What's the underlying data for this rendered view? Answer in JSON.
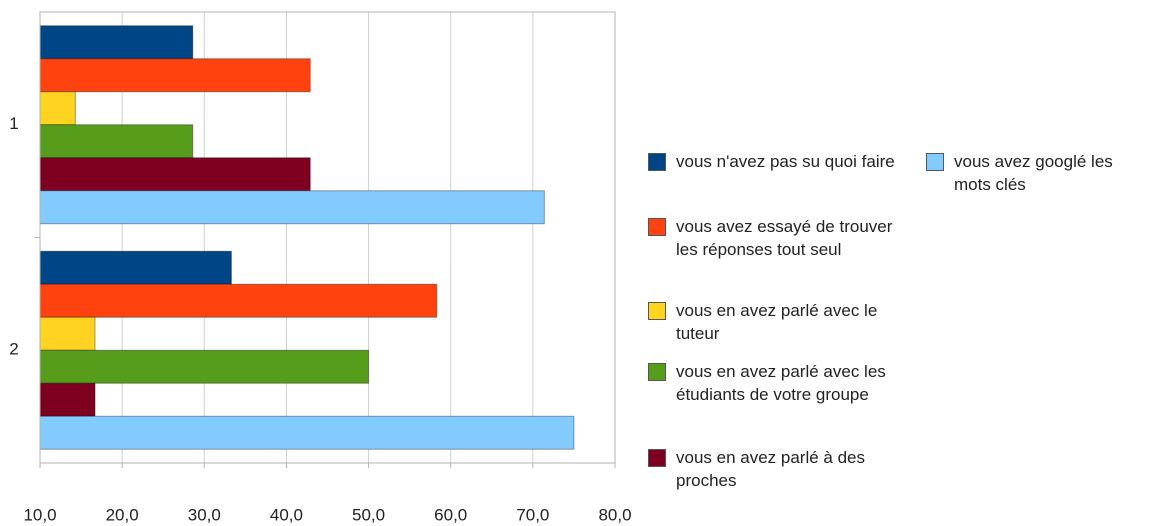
{
  "chart_data": {
    "type": "hbar",
    "categories": [
      "1",
      "2"
    ],
    "series": [
      {
        "name": "vous n'avez pas su quoi faire",
        "color": "#004586",
        "values": [
          28.6,
          33.3
        ]
      },
      {
        "name": "vous avez essayé de trouver les réponses tout seul",
        "color": "#ff420e",
        "values": [
          42.9,
          58.3
        ]
      },
      {
        "name": "vous en avez parlé avec le tuteur",
        "color": "#ffd320",
        "values": [
          14.3,
          16.7
        ]
      },
      {
        "name": "vous en avez parlé avec les étudiants de votre groupe",
        "color": "#579d1c",
        "values": [
          28.6,
          50.0
        ]
      },
      {
        "name": "vous en avez parlé à des proches",
        "color": "#7e0021",
        "values": [
          42.9,
          16.7
        ]
      },
      {
        "name": "vous avez googlé les mots clés",
        "color": "#83caff",
        "values": [
          71.4,
          75.0
        ]
      }
    ],
    "xlim": [
      10,
      80
    ],
    "xticks": [
      {
        "value": 10,
        "label": "10,0"
      },
      {
        "value": 20,
        "label": "20,0"
      },
      {
        "value": 30,
        "label": "30,0"
      },
      {
        "value": 40,
        "label": "40,0"
      },
      {
        "value": 50,
        "label": "50,0"
      },
      {
        "value": 60,
        "label": "60,0"
      },
      {
        "value": 70,
        "label": "70,0"
      },
      {
        "value": 80,
        "label": "80,0"
      }
    ],
    "grid": true
  }
}
